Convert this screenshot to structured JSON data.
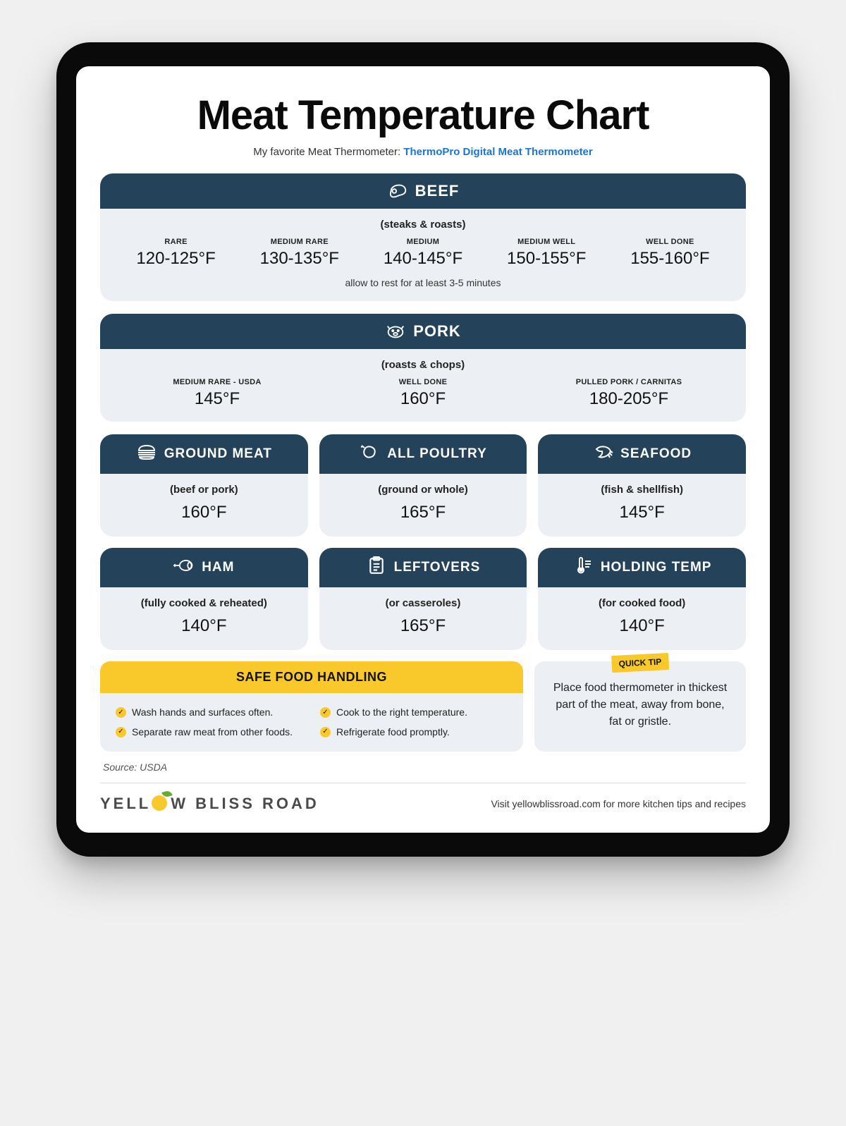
{
  "colors": {
    "header_bg": "#24425a",
    "body_bg": "#eceff3",
    "accent": "#f9c92c",
    "link": "#1976d2",
    "leaf": "#6aa934"
  },
  "title": "Meat Temperature Chart",
  "subtitle_prefix": "My favorite Meat Thermometer: ",
  "subtitle_link": "ThermoPro Digital Meat Thermometer",
  "beef": {
    "header": "BEEF",
    "subtitle": "(steaks & roasts)",
    "note": "allow to rest for at least 3-5 minutes",
    "temps": [
      {
        "label": "RARE",
        "value": "120-125°F"
      },
      {
        "label": "MEDIUM RARE",
        "value": "130-135°F"
      },
      {
        "label": "MEDIUM",
        "value": "140-145°F"
      },
      {
        "label": "MEDIUM WELL",
        "value": "150-155°F"
      },
      {
        "label": "WELL DONE",
        "value": "155-160°F"
      }
    ]
  },
  "pork": {
    "header": "PORK",
    "subtitle": "(roasts & chops)",
    "temps": [
      {
        "label": "MEDIUM RARE - USDA",
        "value": "145°F"
      },
      {
        "label": "WELL DONE",
        "value": "160°F"
      },
      {
        "label": "PULLED PORK / CARNITAS",
        "value": "180-205°F"
      }
    ]
  },
  "cards_row1": [
    {
      "icon": "burger",
      "header": "GROUND MEAT",
      "subtitle": "(beef or pork)",
      "value": "160°F"
    },
    {
      "icon": "poultry",
      "header": "ALL POULTRY",
      "subtitle": "(ground or whole)",
      "value": "165°F"
    },
    {
      "icon": "shrimp",
      "header": "SEAFOOD",
      "subtitle": "(fish & shellfish)",
      "value": "145°F"
    }
  ],
  "cards_row2": [
    {
      "icon": "ham",
      "header": "HAM",
      "subtitle": "(fully cooked & reheated)",
      "value": "140°F"
    },
    {
      "icon": "clipboard",
      "header": "LEFTOVERS",
      "subtitle": "(or casseroles)",
      "value": "165°F"
    },
    {
      "icon": "thermo",
      "header": "HOLDING TEMP",
      "subtitle": "(for cooked food)",
      "value": "140°F"
    }
  ],
  "safe": {
    "header": "SAFE FOOD HANDLING",
    "items": [
      "Wash hands and surfaces often.",
      "Cook to the right temperature.",
      "Separate raw meat from other foods.",
      "Refrigerate food promptly."
    ]
  },
  "tip": {
    "badge": "QUICK TIP",
    "text": "Place food thermometer in thickest part of the meat, away from bone, fat or gristle."
  },
  "source": "Source: USDA",
  "brand_pre": "YELL",
  "brand_post": "W BLISS ROAD",
  "footer_text": "Visit yellowblissroad.com for more kitchen tips and recipes"
}
